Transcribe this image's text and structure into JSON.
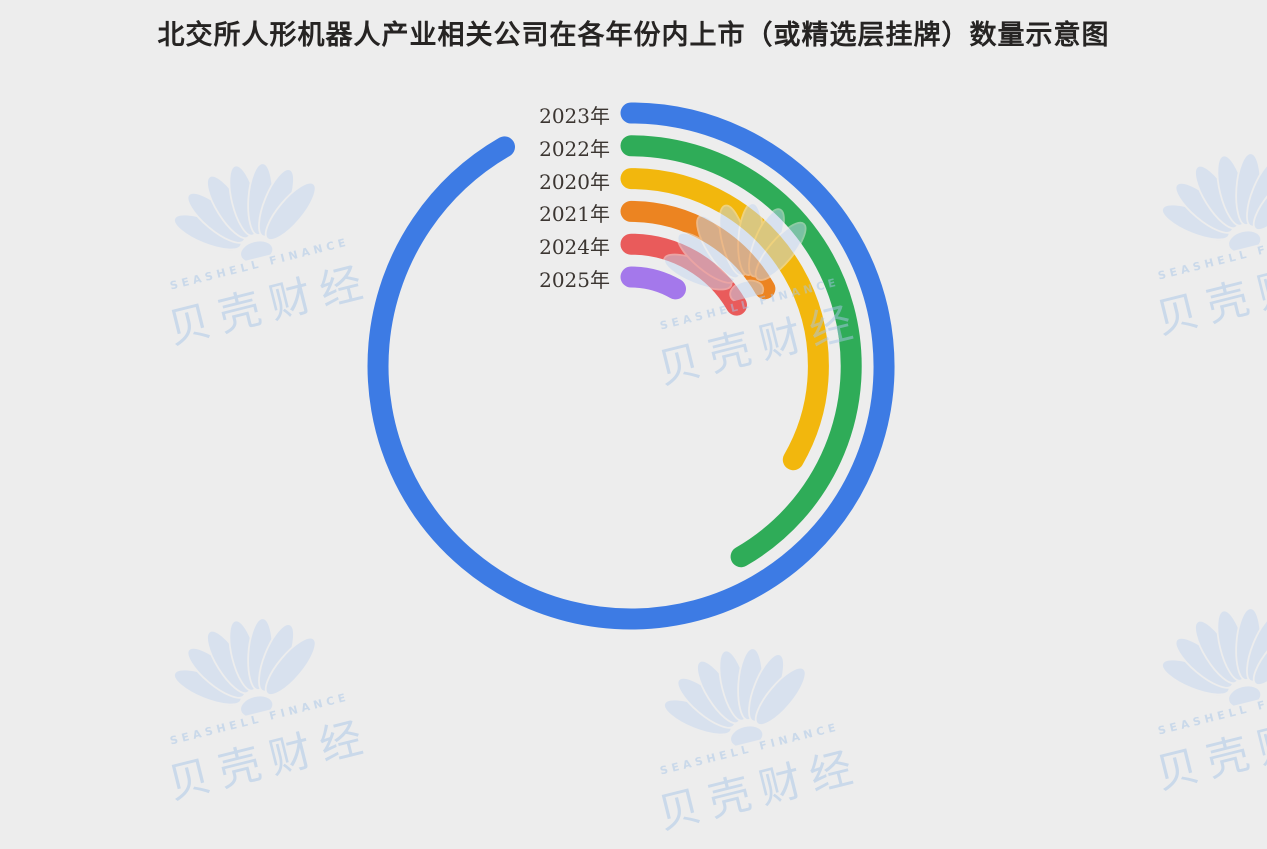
{
  "page": {
    "title": "北交所人形机器人产业相关公司在各年份内上市（或精选层挂牌）数量示意图"
  },
  "watermark": {
    "brand_cn": "贝壳财经",
    "brand_en": "SEASHELL FINANCE"
  },
  "chart_data": {
    "type": "radial_bar",
    "title": "北交所人形机器人产业相关公司在各年份内上市（或精选层挂牌）数量示意图",
    "start_angle_deg": 0,
    "direction": "clockwise",
    "degrees_per_unit": 30,
    "values_labeled_on_chart": false,
    "legend_position": "labels at each ring start (12 o'clock), ordered outer to inner",
    "rings": [
      {
        "label": "2023年",
        "value": 11,
        "sweep_deg": 330,
        "color": "#3D7BE4"
      },
      {
        "label": "2022年",
        "value": 5,
        "sweep_deg": 150,
        "color": "#2FAC58"
      },
      {
        "label": "2020年",
        "value": 4,
        "sweep_deg": 120,
        "color": "#F2B70D"
      },
      {
        "label": "2021年",
        "value": 2,
        "sweep_deg": 60,
        "color": "#EC8421"
      },
      {
        "label": "2024年",
        "value": 2,
        "sweep_deg": 60,
        "color": "#E95B5B"
      },
      {
        "label": "2025年",
        "value": 1,
        "sweep_deg": 30,
        "color": "#A478EB"
      }
    ],
    "background_color": "#EDEDED"
  }
}
